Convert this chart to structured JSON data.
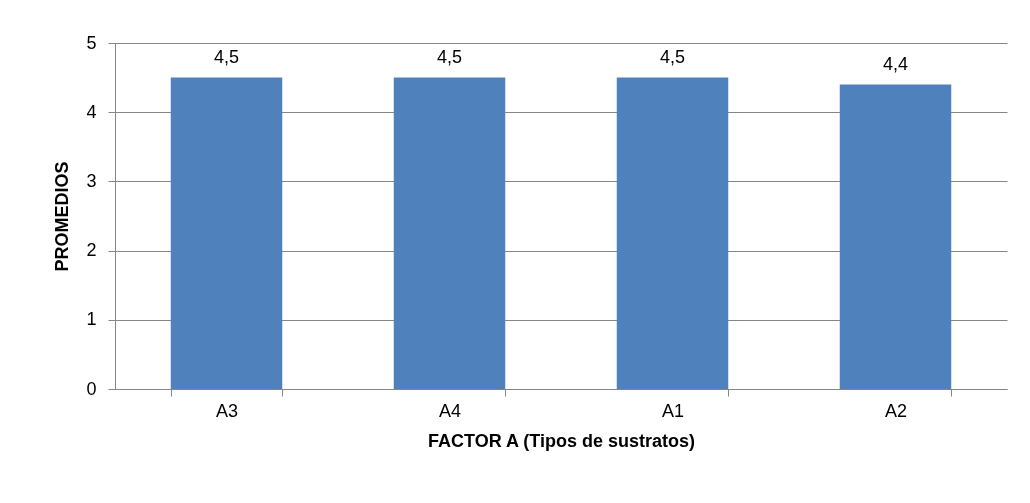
{
  "chart_data": {
    "type": "bar",
    "xlabel": "FACTOR A (Tipos de sustratos)",
    "ylabel": "PROMEDIOS",
    "categories": [
      "A3",
      "A4",
      "A1",
      "A2"
    ],
    "values": [
      4.5,
      4.5,
      4.5,
      4.4
    ],
    "value_labels": [
      "4,5",
      "4,5",
      "4,5",
      "4,4"
    ],
    "color": "#4f81bd",
    "ylim": [
      0,
      5
    ],
    "yticks": [
      0,
      1,
      2,
      3,
      4,
      5
    ],
    "grid": "y"
  }
}
